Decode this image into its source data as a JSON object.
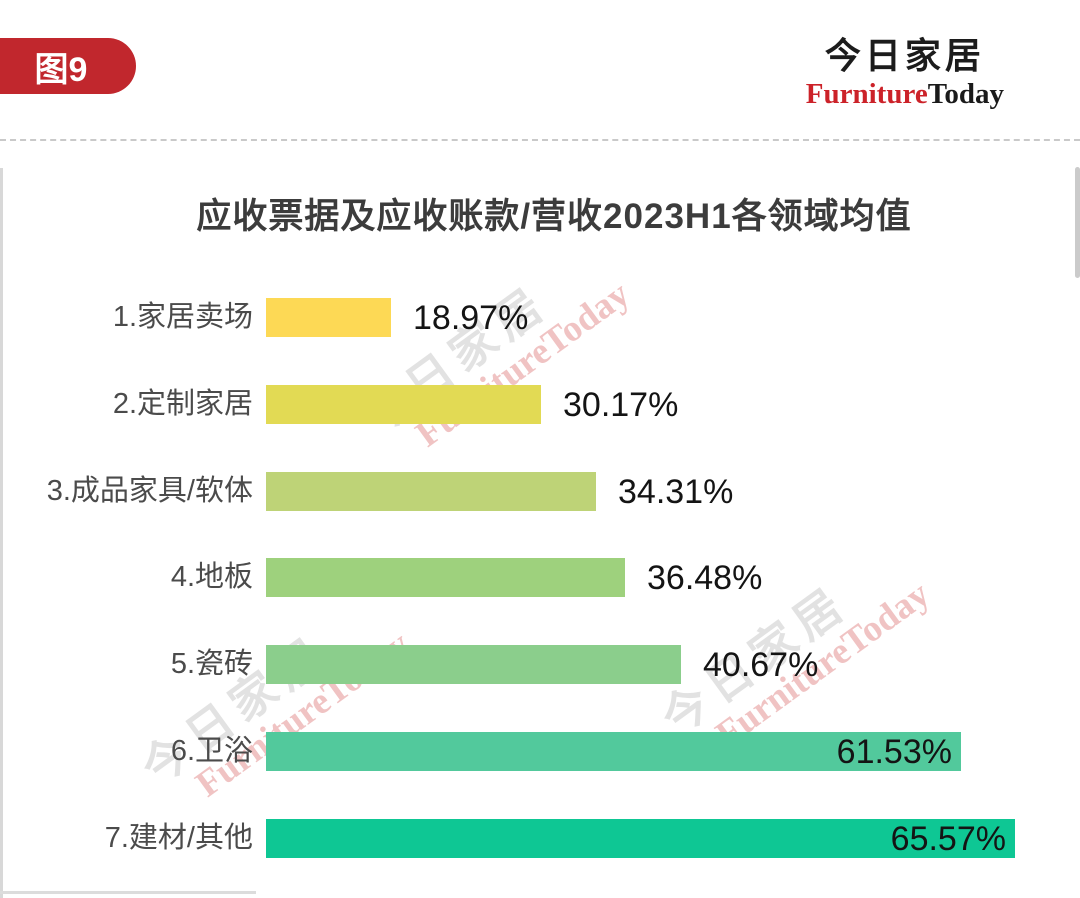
{
  "badge": {
    "label": "图9",
    "color": "#C1272D"
  },
  "logo": {
    "chinese": "今日家居",
    "english_red": "Furniture",
    "english_black": "Today",
    "accent_color": "#CC2229"
  },
  "watermark": {
    "line1": "今日家居",
    "line2": "FurnitureToday"
  },
  "chart_data": {
    "type": "bar",
    "orientation": "horizontal",
    "title": "应收票据及应收账款/营收2023H1各领域均值",
    "categories": [
      "1.家居卖场",
      "2.定制家居",
      "3.成品家具/软体",
      "4.地板",
      "5.瓷砖",
      "6.卫浴",
      "7.建材/其他"
    ],
    "values": [
      18.97,
      30.17,
      34.31,
      36.48,
      40.67,
      61.53,
      65.57
    ],
    "value_labels": [
      "18.97%",
      "30.17%",
      "34.31%",
      "36.48%",
      "40.67%",
      "61.53%",
      "65.57%"
    ],
    "bar_colors": [
      "#FDD955",
      "#E2DA54",
      "#BED377",
      "#9ED17D",
      "#8BCE8C",
      "#52C99C",
      "#0EC794"
    ],
    "xlim": [
      9.66,
      65.57
    ],
    "grid": false,
    "legend": false,
    "value_label_position": "outside for bars 1-5, inside right for bars 6-7"
  }
}
